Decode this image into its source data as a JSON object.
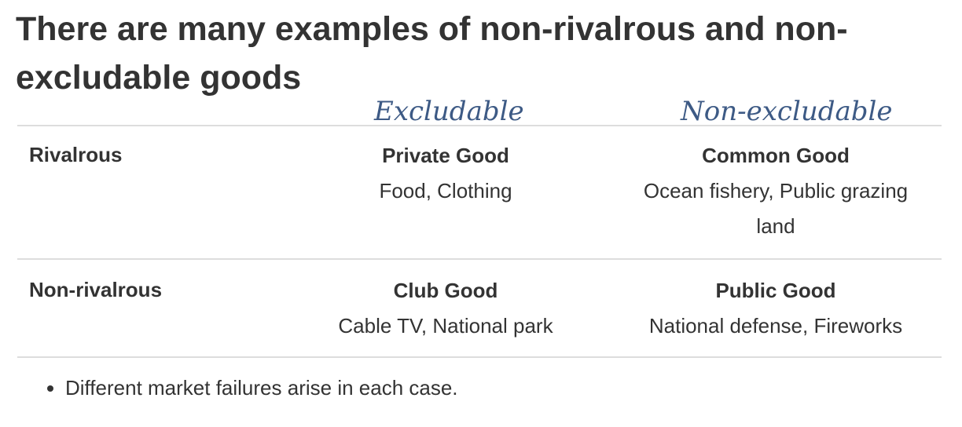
{
  "header": {
    "title": "There are many examples of non-rivalrous and non-excludable goods"
  },
  "annotations": [
    "Excludable",
    "Non-excludable"
  ],
  "table": {
    "rows": [
      {
        "label": "Rivalrous",
        "cells": [
          {
            "title": "Private Good",
            "examples": "Food, Clothing"
          },
          {
            "title": "Common Good",
            "examples": "Ocean fishery, Public grazing land"
          }
        ]
      },
      {
        "label": "Non-rivalrous",
        "cells": [
          {
            "title": "Club Good",
            "examples": "Cable TV, National park"
          },
          {
            "title": "Public Good",
            "examples": "National defense, Fireworks"
          }
        ]
      }
    ]
  },
  "bullets": [
    "Different market failures arise in each case."
  ]
}
